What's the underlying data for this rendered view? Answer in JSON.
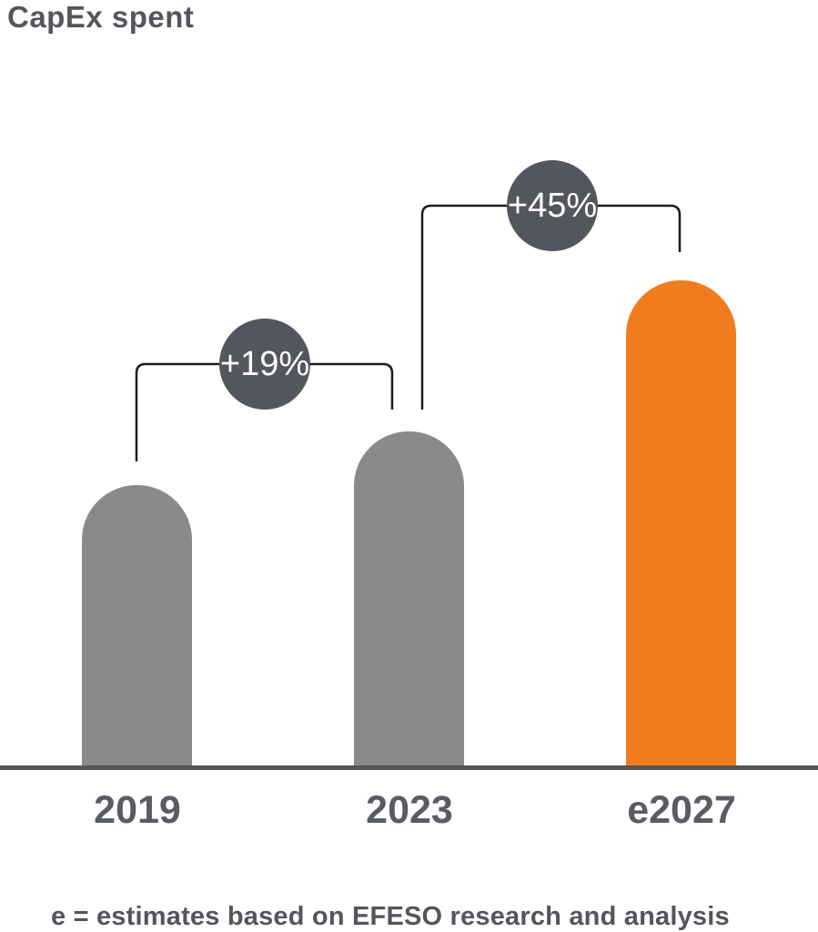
{
  "page": {
    "title": "CapEx spent",
    "footnote": "e = estimates based on EFESO research and analysis"
  },
  "chart_data": {
    "type": "bar",
    "title": "CapEx spent",
    "categories": [
      "2019",
      "2023",
      "e2027"
    ],
    "values": [
      100,
      119,
      173
    ],
    "ylim": [
      0,
      173
    ],
    "xlabel": "",
    "ylabel": "",
    "grid": false,
    "legend": false,
    "annotations": [
      {
        "label": "+19%",
        "from": "2019",
        "to": "2023"
      },
      {
        "label": "+45%",
        "from": "2023",
        "to": "e2027"
      }
    ],
    "bar_colors": [
      "#8a8a8a",
      "#8a8a8a",
      "#ef7d1e"
    ],
    "highlight_color": "#ef7d1e",
    "badge_color": "#54565e",
    "badge_text_color": "#ffffff",
    "axis_color": "#53555b",
    "label_color": "#5a5c64",
    "title_color": "#54565c",
    "bracket_line_color": "#1c1c1c",
    "footnote": "e = estimates based on EFESO research and analysis"
  }
}
